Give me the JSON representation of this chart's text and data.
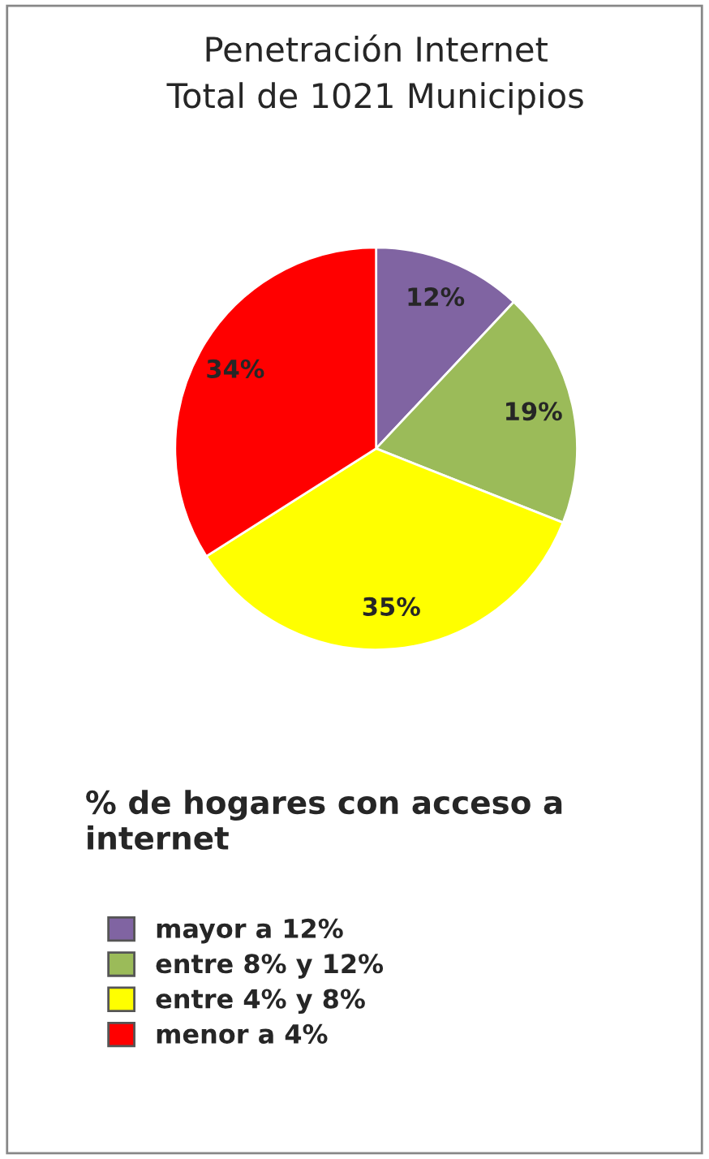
{
  "chart_data": {
    "type": "pie",
    "title": "Penetración Internet",
    "subtitle": "Total de 1021 Municipios",
    "categories": [
      "mayor a 12%",
      "entre 8% y 12%",
      "entre 4% y 8%",
      "menor a 4%"
    ],
    "values": [
      12,
      19,
      35,
      34
    ],
    "value_labels": [
      "12%",
      "19%",
      "35%",
      "34%"
    ],
    "colors": [
      "#8064a2",
      "#9bbb59",
      "#ffff00",
      "#ff0000"
    ],
    "legend_title": "% de hogares con acceso a internet",
    "legend": "bottom"
  }
}
